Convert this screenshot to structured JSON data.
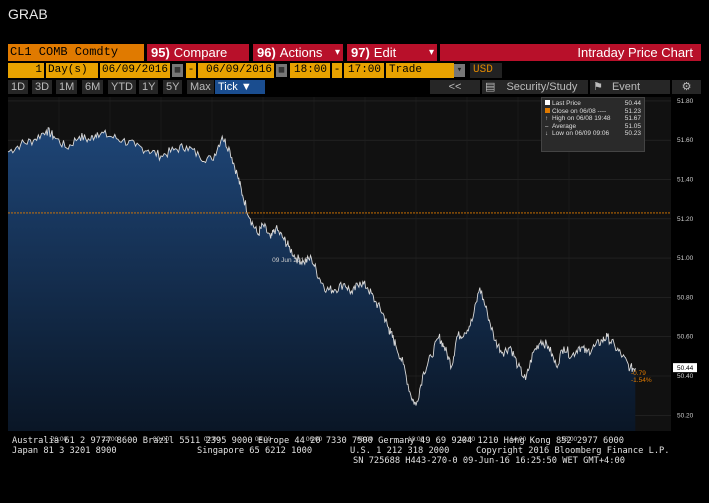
{
  "window": {
    "title": "GRAB"
  },
  "toolbar": {
    "ticker": "CL1 COMB Comdty",
    "compare": {
      "num": "95)",
      "label": "Compare"
    },
    "actions": {
      "num": "96)",
      "label": "Actions"
    },
    "edit": {
      "num": "97)",
      "label": "Edit"
    },
    "chart_title": "Intraday Price Chart"
  },
  "params": {
    "period_value": "1",
    "period_unit": "Day(s)",
    "start_date": "06/09/2016",
    "end_date": "06/09/2016",
    "start_time": "18:00",
    "end_time": "17:00",
    "event": "Trade",
    "currency": "USD"
  },
  "ranges": [
    "1D",
    "3D",
    "1M",
    "6M",
    "YTD",
    "1Y",
    "5Y",
    "Max"
  ],
  "tick_label": "Tick",
  "right_controls": {
    "back": "<<",
    "security_study": "Security/Study",
    "event": "Event"
  },
  "legend": {
    "last_price": {
      "label": "Last Price",
      "value": "50.44"
    },
    "close": {
      "label": "Close on 06/08 ----",
      "value": "51.23"
    },
    "high": {
      "label": "High on 06/08 19:48",
      "value": "51.67"
    },
    "average": {
      "label": "Average",
      "value": "51.05"
    },
    "low": {
      "label": "Low on 06/09 09:06",
      "value": "50.23"
    }
  },
  "colors": {
    "area_top": "#1b3f6b",
    "area_bottom": "#0c1b2e",
    "line": "#d8d8d8",
    "close_line": "#e07a00",
    "accent_red": "#b8102a",
    "accent_orange": "#e07a00"
  },
  "chart_data": {
    "type": "area",
    "date_label": "09 Jun 2016",
    "x_ticks": [
      "20:00",
      "22:00",
      "00:00",
      "02:00",
      "04:00",
      "06:00",
      "08:00",
      "10:00",
      "12:00",
      "14:00",
      "16:00"
    ],
    "y_ticks": [
      "51.80",
      "51.60",
      "51.40",
      "51.20",
      "51.00",
      "50.80",
      "50.60",
      "50.40",
      "50.20"
    ],
    "ylim": [
      50.12,
      51.82
    ],
    "x_hours": [
      18.0,
      18.5,
      19.0,
      19.5,
      19.8,
      20.3,
      20.8,
      21.2,
      21.5,
      22.0,
      22.5,
      23.0,
      23.5,
      24.0,
      24.5,
      25.0,
      25.5,
      26.0,
      26.4,
      26.7,
      27.0,
      27.2,
      27.5,
      27.8,
      28.0,
      28.3,
      28.5,
      28.8,
      29.0,
      29.3,
      29.6,
      29.9,
      30.2,
      30.5,
      30.8,
      31.2,
      31.5,
      31.8,
      32.1,
      32.4,
      32.7,
      32.9,
      33.0,
      33.2,
      33.5,
      33.8,
      34.0,
      34.3,
      34.6,
      34.9,
      35.1,
      35.4,
      35.6,
      35.9,
      36.2,
      36.5,
      36.8,
      37.1,
      37.4,
      37.7,
      38.0,
      38.3,
      38.6,
      38.9,
      39.2,
      39.5,
      39.8,
      40.1,
      40.4,
      40.7,
      41.0,
      41.3,
      41.5,
      41.8,
      42.1,
      42.4,
      42.6
    ],
    "values": [
      51.54,
      51.58,
      51.6,
      51.65,
      51.62,
      51.56,
      51.62,
      51.6,
      51.64,
      51.62,
      51.6,
      51.57,
      51.55,
      51.52,
      51.55,
      51.57,
      51.52,
      51.5,
      51.62,
      51.55,
      51.42,
      51.32,
      51.2,
      51.12,
      51.17,
      51.1,
      51.15,
      51.1,
      51.06,
      51.0,
      50.98,
      51.0,
      50.9,
      50.84,
      50.84,
      50.87,
      50.82,
      50.88,
      50.85,
      50.78,
      50.72,
      50.65,
      50.62,
      50.56,
      50.46,
      50.3,
      50.25,
      50.42,
      50.5,
      50.6,
      50.55,
      50.45,
      50.6,
      50.62,
      50.68,
      50.85,
      50.72,
      50.58,
      50.52,
      50.55,
      50.45,
      50.38,
      50.52,
      50.58,
      50.55,
      50.45,
      50.55,
      50.5,
      50.55,
      50.52,
      50.55,
      50.58,
      50.6,
      50.55,
      50.5,
      50.44,
      50.44
    ],
    "close_level": 51.23,
    "last_price": 50.44,
    "change_abs": "-0.79",
    "change_pct": "-1.54%"
  },
  "footer": {
    "line1": "Australia 61 2 9777 8600 Brazil 5511 2395 9000 Europe 44 20 7330 7500 Germany 49 69 9204 1210 Hong Kong 852 2977 6000",
    "line2a": "Japan 81 3 3201 8900",
    "line2b": "Singapore 65 6212 1000",
    "line2c": "U.S. 1 212 318 2000",
    "line2d": "Copyright 2016 Bloomberg Finance L.P.",
    "line3": "SN 725688 H443-270-0 09-Jun-16 16:25:50 WET  GMT+4:00"
  }
}
